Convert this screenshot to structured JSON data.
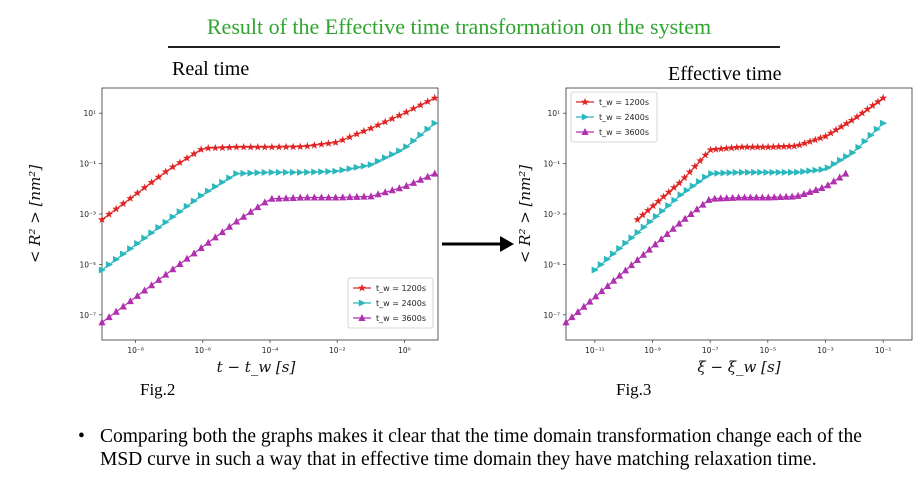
{
  "slide": {
    "title": "Result of the Effective time transformation on the system",
    "left_heading": "Real time",
    "right_heading": "Effective time",
    "left_caption": "Fig.2",
    "right_caption": "Fig.3",
    "bullet_symbol": "•",
    "bullet_text": "Comparing both the graphs makes it clear that the time domain transformation change each of the MSD curve in such a way that in effective time domain they have matching relaxation time."
  },
  "colors": {
    "title": "#2fa52f",
    "series": [
      "#e02424",
      "#2bb8bd",
      "#b030b0"
    ]
  },
  "chart_data": [
    {
      "type": "line",
      "xscale": "log",
      "yscale": "log",
      "xlabel": "t − t_w [s]",
      "ylabel": "< R² >  [nm²]",
      "xlim": [
        1e-09,
        10
      ],
      "ylim": [
        1e-08,
        100
      ],
      "xticks": [
        "10⁻⁸",
        "10⁻⁶",
        "10⁻⁴",
        "10⁻²",
        "10⁰"
      ],
      "yticks": [
        "10⁻⁷",
        "10⁻⁵",
        "10⁻³",
        "10⁻¹",
        "10¹"
      ],
      "legend": "bottom-right",
      "series": [
        {
          "name": "t_w = 1200s",
          "marker": "star",
          "x": [
            1e-09,
            1e-08,
            1e-07,
            1e-06,
            1e-05,
            0.0001,
            0.001,
            0.01,
            0.1,
            1,
            8
          ],
          "y": [
            0.0006,
            0.006,
            0.06,
            0.4,
            0.45,
            0.45,
            0.47,
            0.7,
            2.5,
            10,
            40
          ]
        },
        {
          "name": "t_w = 2400s",
          "marker": "triangle-right",
          "x": [
            1e-09,
            1e-08,
            1e-07,
            1e-06,
            1e-05,
            0.0001,
            0.001,
            0.01,
            0.1,
            1,
            8
          ],
          "y": [
            6e-06,
            6e-05,
            0.0006,
            0.006,
            0.04,
            0.045,
            0.045,
            0.05,
            0.09,
            0.4,
            4
          ]
        },
        {
          "name": "t_w = 3600s",
          "marker": "triangle-up",
          "x": [
            1e-09,
            1e-08,
            1e-07,
            1e-06,
            1e-05,
            0.0001,
            0.001,
            0.01,
            0.1,
            1,
            8
          ],
          "y": [
            5e-08,
            5e-07,
            5e-06,
            5e-05,
            0.0005,
            0.004,
            0.0045,
            0.0045,
            0.005,
            0.012,
            0.04
          ]
        }
      ]
    },
    {
      "type": "line",
      "xscale": "log",
      "yscale": "log",
      "xlabel": "ξ − ξ_w [s]",
      "ylabel": "< R² >  [nm²]",
      "xlim": [
        1e-12,
        1
      ],
      "ylim": [
        1e-08,
        100
      ],
      "xticks": [
        "10⁻¹¹",
        "10⁻⁹",
        "10⁻⁷",
        "10⁻⁵",
        "10⁻³",
        "10⁻¹"
      ],
      "yticks": [
        "10⁻⁷",
        "10⁻⁵",
        "10⁻³",
        "10⁻¹",
        "10¹"
      ],
      "legend": "top-left",
      "series": [
        {
          "name": "t_w = 1200s",
          "marker": "star",
          "x": [
            3e-10,
            1e-09,
            1e-08,
            1e-07,
            1e-06,
            1e-05,
            0.0001,
            0.001,
            0.01,
            0.1
          ],
          "y": [
            0.0006,
            0.002,
            0.02,
            0.35,
            0.45,
            0.45,
            0.5,
            1.2,
            6,
            40
          ]
        },
        {
          "name": "t_w = 2400s",
          "marker": "triangle-right",
          "x": [
            1e-11,
            1e-10,
            1e-09,
            1e-08,
            1e-07,
            1e-06,
            1e-05,
            0.0001,
            0.001,
            0.01,
            0.1
          ],
          "y": [
            6e-06,
            6e-05,
            0.0006,
            0.006,
            0.04,
            0.045,
            0.045,
            0.045,
            0.06,
            0.3,
            4
          ]
        },
        {
          "name": "t_w = 3600s",
          "marker": "triangle-up",
          "x": [
            1e-12,
            1e-11,
            1e-10,
            1e-09,
            1e-08,
            1e-07,
            1e-06,
            1e-05,
            0.0001,
            0.001,
            0.005
          ],
          "y": [
            5e-08,
            5e-07,
            5e-06,
            5e-05,
            0.0005,
            0.004,
            0.0045,
            0.0045,
            0.005,
            0.012,
            0.04
          ]
        }
      ]
    }
  ]
}
